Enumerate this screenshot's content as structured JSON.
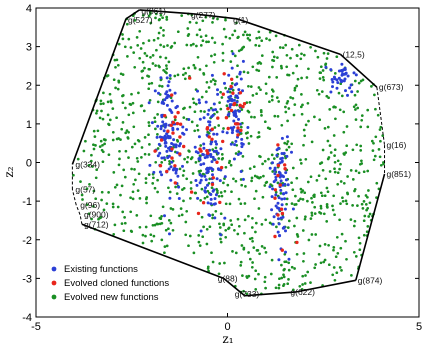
{
  "chart_data": {
    "type": "scatter",
    "title": "",
    "xlabel": "z₁",
    "ylabel": "z₂",
    "xlim": [
      -5,
      5
    ],
    "ylim": [
      -4,
      4
    ],
    "xticks": [
      "-5",
      "0",
      "5"
    ],
    "yticks": [
      "4",
      "3",
      "2",
      "1",
      "0",
      "-1",
      "-2",
      "-3",
      "-4"
    ],
    "grid": false,
    "legend_position": "lower-left",
    "series": [
      {
        "name": "Existing functions",
        "color": "#2b3fd6",
        "marker": "dot",
        "count": 420
      },
      {
        "name": "Evolved cloned functions",
        "color": "#e8251b",
        "marker": "dot",
        "count": 75
      },
      {
        "name": "Evolved new functions",
        "color": "#1a8f24",
        "marker": "dot",
        "count": 1100
      }
    ],
    "hull": [
      {
        "label": "g(861)",
        "x": -2.3,
        "y": 3.95
      },
      {
        "label": "g(277)",
        "x": -0.9,
        "y": 3.85
      },
      {
        "label": "g(1)",
        "x": 0.25,
        "y": 3.72
      },
      {
        "label": "(12,5)",
        "x": 2.95,
        "y": 2.8
      },
      {
        "label": "g(673)",
        "x": 3.9,
        "y": 1.95
      },
      {
        "label": "g(16)",
        "x": 4.1,
        "y": 0.45
      },
      {
        "label": "g(851)",
        "x": 4.1,
        "y": -0.3
      },
      {
        "label": "g(874)",
        "x": 3.35,
        "y": -3.05
      },
      {
        "label": "g(622)",
        "x": 1.8,
        "y": -3.35
      },
      {
        "label": "g(733)",
        "x": 0.45,
        "y": -3.45
      },
      {
        "label": "g(88)",
        "x": -0.1,
        "y": -3.0
      },
      {
        "label": "g(712)",
        "x": -3.8,
        "y": -1.6
      },
      {
        "label": "g(900)",
        "x": -3.85,
        "y": -1.35
      },
      {
        "label": "g(96)",
        "x": -3.95,
        "y": -1.1
      },
      {
        "label": "g(57)",
        "x": -4.05,
        "y": -0.7
      },
      {
        "label": "g(334)",
        "x": -4.05,
        "y": -0.05
      },
      {
        "label": "g(527)",
        "x": -2.65,
        "y": 3.72
      }
    ],
    "hull_solid_edges": [
      [
        0,
        1
      ],
      [
        1,
        2
      ],
      [
        2,
        3
      ],
      [
        3,
        4
      ],
      [
        6,
        7
      ],
      [
        7,
        8
      ],
      [
        8,
        9
      ],
      [
        9,
        10
      ],
      [
        10,
        11
      ],
      [
        15,
        16
      ],
      [
        16,
        0
      ]
    ],
    "hull_dashed_edges": [
      [
        4,
        5
      ],
      [
        5,
        6
      ],
      [
        11,
        12
      ],
      [
        12,
        13
      ],
      [
        13,
        14
      ],
      [
        14,
        15
      ]
    ]
  }
}
